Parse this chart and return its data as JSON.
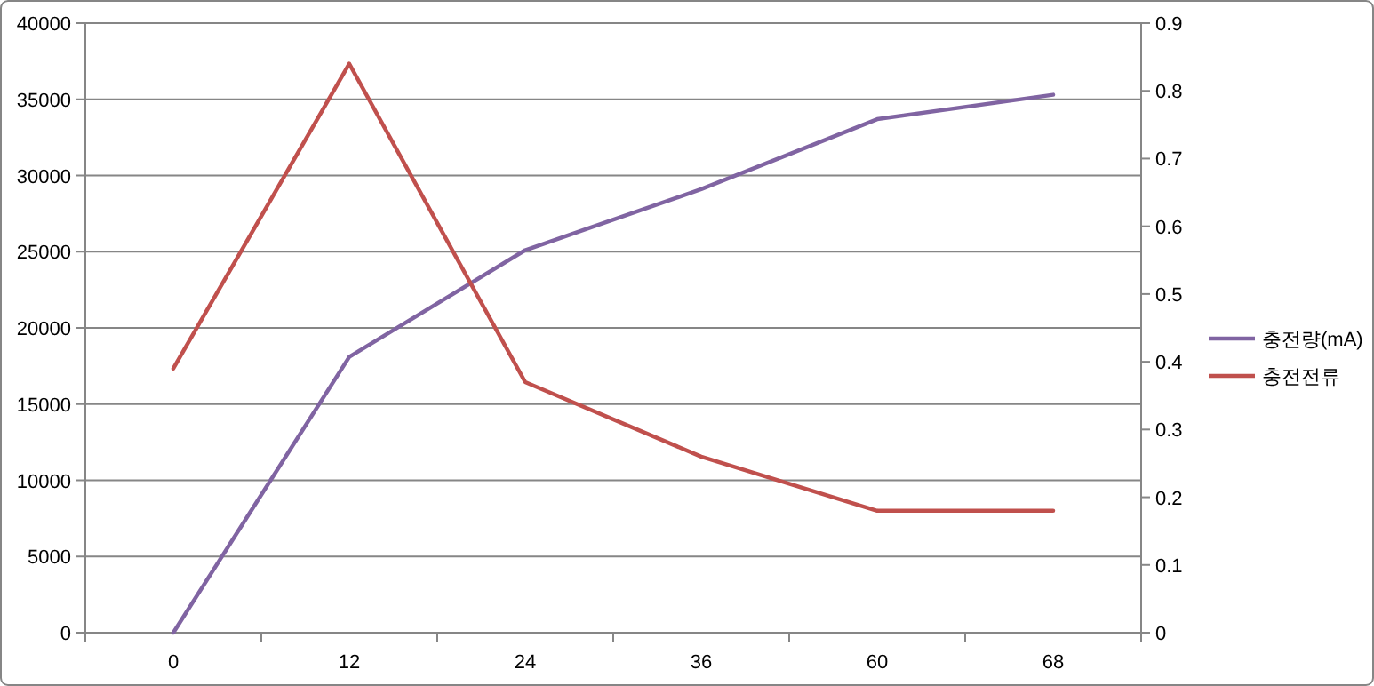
{
  "chart_data": {
    "type": "line",
    "categories": [
      "0",
      "12",
      "24",
      "36",
      "60",
      "68"
    ],
    "series": [
      {
        "name": "충전량(mA)",
        "color": "#8064a2",
        "values": [
          0,
          18100,
          25100,
          29100,
          33700,
          35300
        ]
      },
      {
        "name": "충전전류",
        "color": "#c0504d",
        "values": [
          0.39,
          0.84,
          0.37,
          0.26,
          0.18,
          0.18
        ],
        "axis": "y2"
      }
    ],
    "ylim": [
      0,
      40000
    ],
    "yticks": [
      0,
      5000,
      10000,
      15000,
      20000,
      25000,
      30000,
      35000,
      40000
    ],
    "y2lim": [
      0,
      0.9
    ],
    "y2ticks": [
      0,
      0.1,
      0.2,
      0.3,
      0.4,
      0.5,
      0.6,
      0.7,
      0.8,
      0.9
    ],
    "grid": "y",
    "legend": "right",
    "marker": "none",
    "line_style": "solid"
  }
}
